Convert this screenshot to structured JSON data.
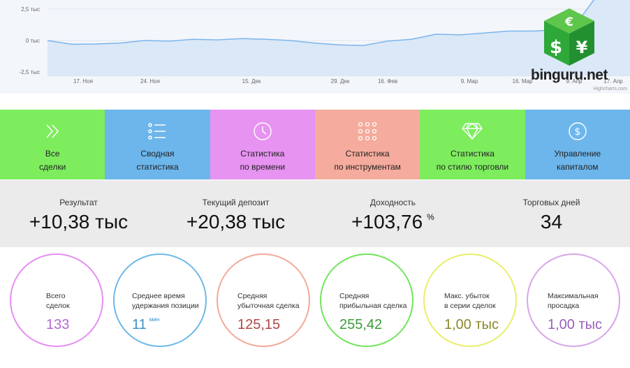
{
  "chart": {
    "y_ticks": [
      "2,5 тыс",
      "0 тыс",
      "-2,5 тыс"
    ],
    "x_ticks": [
      "17. Ноя",
      "24. Ноя",
      "15. Дек",
      "29. Дек",
      "16. Фев",
      "9. Мар",
      "16. Мар",
      "9. Апр",
      "17. Апр"
    ],
    "credit": "Highcharts.com",
    "line_color": "#7cb5ec",
    "series": [
      0,
      -0.3,
      -0.28,
      -0.2,
      0,
      -0.05,
      0.1,
      0.05,
      0.15,
      0.1,
      0,
      -0.2,
      -0.35,
      -0.4,
      -0.05,
      0.1,
      0.5,
      0.45,
      0.6,
      0.75,
      0.75,
      0.85,
      1.9,
      4.5,
      6
    ]
  },
  "logo": {
    "text": "binguru.net",
    "symbols": [
      "€",
      "$",
      "¥"
    ],
    "color": "#2fa83a"
  },
  "nav": [
    {
      "line1": "Все",
      "line2": "сделки",
      "icon": "double-chevron-icon",
      "color": "#7ded5e"
    },
    {
      "line1": "Сводная",
      "line2": "статистика",
      "icon": "list-icon",
      "color": "#6cb6ec"
    },
    {
      "line1": "Статистика",
      "line2": "по времени",
      "icon": "clock-icon",
      "color": "#e693f1"
    },
    {
      "line1": "Статистика",
      "line2": "по инструментам",
      "icon": "grid-dots-icon",
      "color": "#f5ab9d"
    },
    {
      "line1": "Статистика",
      "line2": "по стилю торговли",
      "icon": "diamond-icon",
      "color": "#7ded5e"
    },
    {
      "line1": "Управление",
      "line2": "капиталом",
      "icon": "dollar-coin-icon",
      "color": "#6cb6ec"
    }
  ],
  "stats": [
    {
      "label": "Результат",
      "value": "+10,38 тыс",
      "unit": ""
    },
    {
      "label": "Текущий депозит",
      "value": "+20,38 тыс",
      "unit": ""
    },
    {
      "label": "Доходность",
      "value": "+103,76",
      "unit": "%"
    },
    {
      "label": "Торговых дней",
      "value": "34",
      "unit": ""
    }
  ],
  "circles": [
    {
      "line1": "Всего",
      "line2": "сделок",
      "value": "133",
      "unit": "",
      "color": "#e58ef2",
      "value_color": "#b36ad1"
    },
    {
      "line1": "Среднее время",
      "line2": "удержания позиции",
      "value": "11",
      "unit": "мин",
      "color": "#6cb8e8",
      "value_color": "#3d8fc9"
    },
    {
      "line1": "Средняя",
      "line2": "убыточная сделка",
      "value": "125,15",
      "unit": "",
      "color": "#f3a99a",
      "value_color": "#b04848"
    },
    {
      "line1": "Средняя",
      "line2": "прибыльная сделка",
      "value": "255,42",
      "unit": "",
      "color": "#72e45c",
      "value_color": "#3c9a3a"
    },
    {
      "line1": "Макс. убыток",
      "line2": "в серии сделок",
      "value": "1,00 тыс",
      "unit": "",
      "color": "#e9ee6a",
      "value_color": "#8a8a2a"
    },
    {
      "line1": "Максимальная",
      "line2": "просадка",
      "value": "1,00 тыс",
      "unit": "",
      "color": "#d7a6e8",
      "value_color": "#9a5fb8"
    }
  ]
}
